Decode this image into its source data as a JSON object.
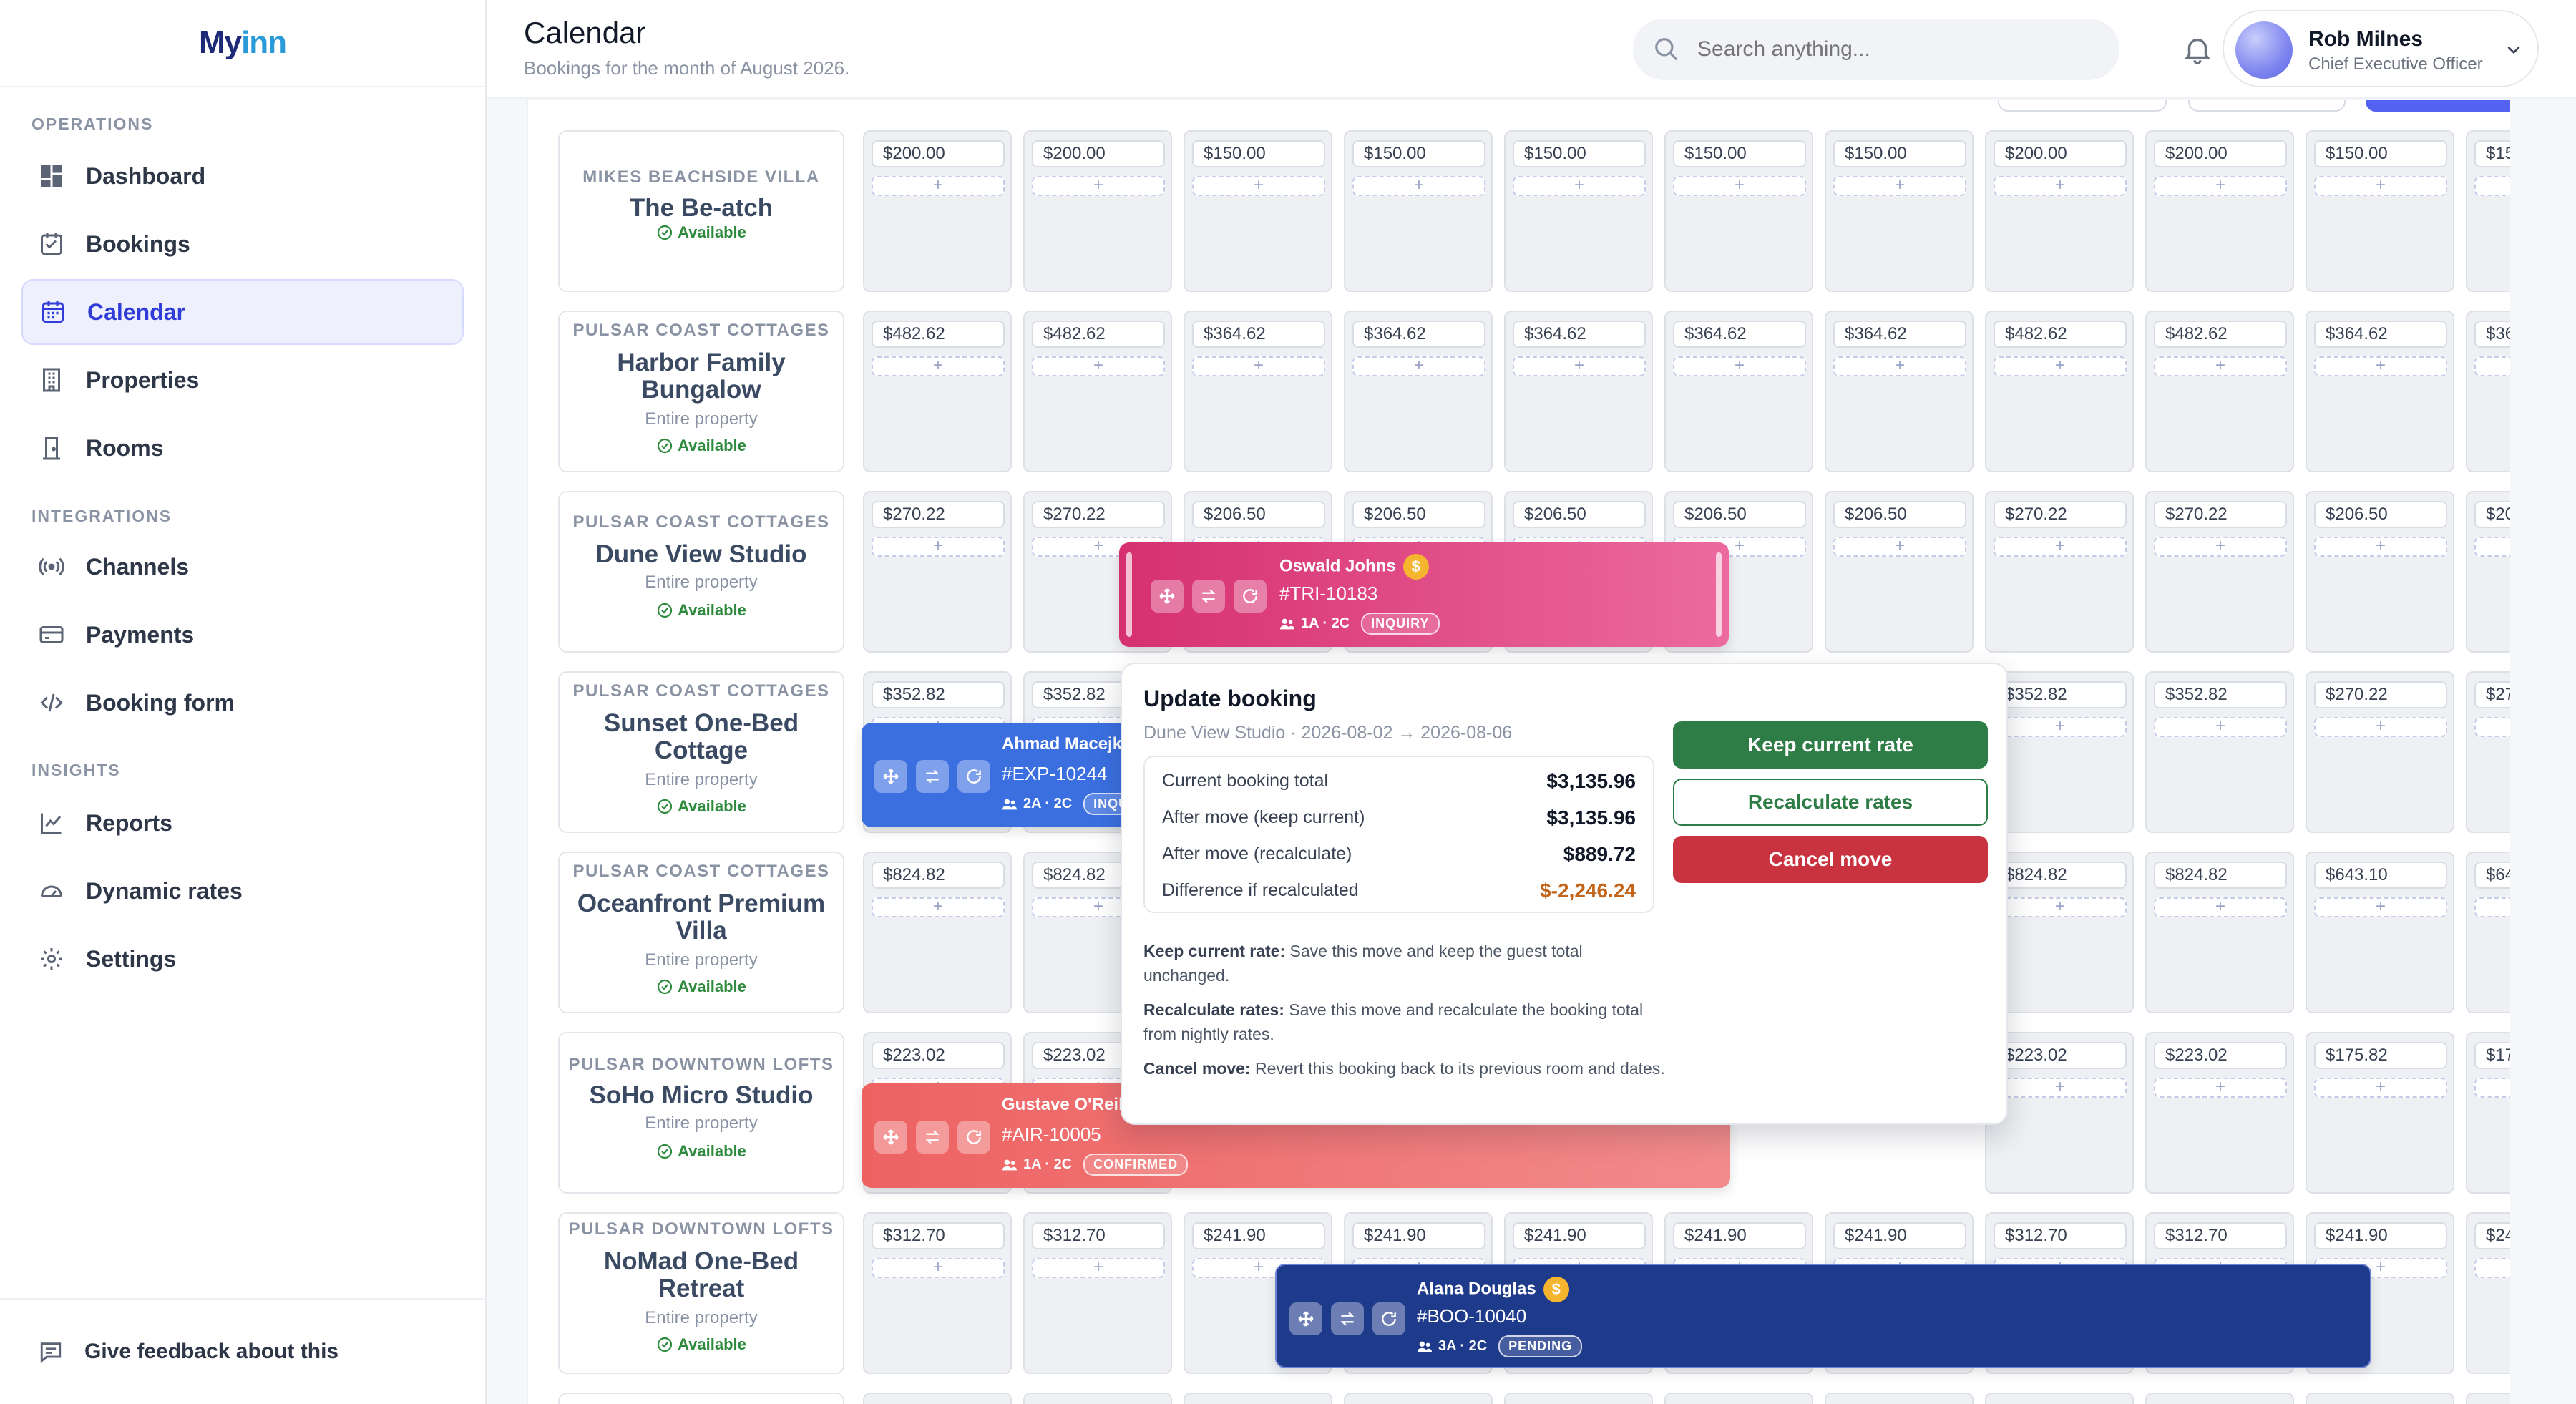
{
  "app": {
    "logo_prefix": "My",
    "logo_suffix": "inn"
  },
  "sidebar": {
    "sections": {
      "operations": "OPERATIONS",
      "integrations": "INTEGRATIONS",
      "insights": "INSIGHTS"
    },
    "items": [
      {
        "label": "Dashboard",
        "icon": "dashboard-icon"
      },
      {
        "label": "Bookings",
        "icon": "bookings-icon"
      },
      {
        "label": "Calendar",
        "icon": "calendar-icon",
        "active": true
      },
      {
        "label": "Properties",
        "icon": "building-icon"
      },
      {
        "label": "Rooms",
        "icon": "door-icon"
      },
      {
        "label": "Channels",
        "icon": "broadcast-icon"
      },
      {
        "label": "Payments",
        "icon": "card-icon"
      },
      {
        "label": "Booking form",
        "icon": "code-icon"
      },
      {
        "label": "Reports",
        "icon": "chart-icon"
      },
      {
        "label": "Dynamic rates",
        "icon": "gauge-icon"
      },
      {
        "label": "Settings",
        "icon": "gear-icon"
      }
    ],
    "feedback": "Give feedback about this"
  },
  "header": {
    "title": "Calendar",
    "subtitle": "Bookings for the month of August 2026.",
    "search_placeholder": "Search anything...",
    "user_name": "Rob Milnes",
    "user_role": "Chief Executive Officer"
  },
  "properties": [
    {
      "group": "MIKES BEACHSIDE VILLA",
      "name": "The Be-atch",
      "type": "",
      "status": "Available",
      "prices": [
        "$200.00",
        "$200.00",
        "$150.00",
        "$150.00",
        "$150.00",
        "$150.00",
        "$150.00",
        "$200.00",
        "$200.00",
        "$150.00",
        "$15"
      ]
    },
    {
      "group": "PULSAR COAST COTTAGES",
      "name": "Harbor Family Bungalow",
      "type": "Entire property",
      "status": "Available",
      "prices": [
        "$482.62",
        "$482.62",
        "$364.62",
        "$364.62",
        "$364.62",
        "$364.62",
        "$364.62",
        "$482.62",
        "$482.62",
        "$364.62",
        "$36"
      ]
    },
    {
      "group": "PULSAR COAST COTTAGES",
      "name": "Dune View Studio",
      "type": "Entire property",
      "status": "Available",
      "prices": [
        "$270.22",
        "$270.22",
        "$206.50",
        "$206.50",
        "$206.50",
        "$206.50",
        "$206.50",
        "$270.22",
        "$270.22",
        "$206.50",
        "$20"
      ]
    },
    {
      "group": "PULSAR COAST COTTAGES",
      "name": "Sunset One-Bed Cottage",
      "type": "Entire property",
      "status": "Available",
      "prices": [
        "$352.82",
        "$352.82",
        "",
        "",
        "",
        "",
        "",
        "$352.82",
        "$352.82",
        "$270.22",
        "$27"
      ]
    },
    {
      "group": "PULSAR COAST COTTAGES",
      "name": "Oceanfront Premium Villa",
      "type": "Entire property",
      "status": "Available",
      "prices": [
        "$824.82",
        "$824.82",
        "",
        "",
        "",
        "",
        "",
        "$824.82",
        "$824.82",
        "$643.10",
        "$64"
      ]
    },
    {
      "group": "PULSAR DOWNTOWN LOFTS",
      "name": "SoHo Micro Studio",
      "type": "Entire property",
      "status": "Available",
      "prices": [
        "$223.02",
        "$223.02",
        "",
        "",
        "",
        "",
        "",
        "$223.02",
        "$223.02",
        "$175.82",
        "$17"
      ]
    },
    {
      "group": "PULSAR DOWNTOWN LOFTS",
      "name": "NoMad One-Bed Retreat",
      "type": "Entire property",
      "status": "Available",
      "prices": [
        "$312.70",
        "$312.70",
        "$241.90",
        "$241.90",
        "$241.90",
        "$241.90",
        "$241.90",
        "$312.70",
        "$312.70",
        "$241.90",
        "$24"
      ]
    }
  ],
  "bookings": [
    {
      "guest": "Oswald Johns",
      "code": "#TRI-10183",
      "guests": "1A · 2C",
      "status": "INQUIRY",
      "coin": "$",
      "color": "#d93d77"
    },
    {
      "guest": "Ahmad Macejkovic",
      "code": "#EXP-10244",
      "guests": "2A · 2C",
      "status": "INQUIRY",
      "coin": "",
      "color": "#3b6fe0"
    },
    {
      "guest": "Gustave O'Reilly",
      "code": "#AIR-10005",
      "guests": "1A · 2C",
      "status": "CONFIRMED",
      "coin": "",
      "color": "#ef6f6f"
    },
    {
      "guest": "Alana Douglas",
      "code": "#BOO-10040",
      "guests": "3A · 2C",
      "status": "PENDING",
      "coin": "$",
      "color": "#1e3a8a"
    }
  ],
  "popover": {
    "title": "Update booking",
    "subtitle": "Dune View Studio · 2026-08-02 → 2026-08-06",
    "rows": [
      {
        "label": "Current booking total",
        "value": "$3,135.96"
      },
      {
        "label": "After move (keep current)",
        "value": "$3,135.96"
      },
      {
        "label": "After move (recalculate)",
        "value": "$889.72"
      },
      {
        "label": "Difference if recalculated",
        "value": "$-2,246.24"
      }
    ],
    "notes": [
      {
        "title": "Keep current rate:",
        "text": "Save this move and keep the guest total unchanged."
      },
      {
        "title": "Recalculate rates:",
        "text": "Save this move and recalculate the booking total from nightly rates."
      },
      {
        "title": "Cancel move:",
        "text": "Revert this booking back to its previous room and dates."
      }
    ],
    "buttons": {
      "keep": "Keep current rate",
      "recalc": "Recalculate rates",
      "cancel": "Cancel move"
    },
    "colors": {
      "keep": "#2f7d46",
      "cancel": "#c9333f"
    }
  }
}
